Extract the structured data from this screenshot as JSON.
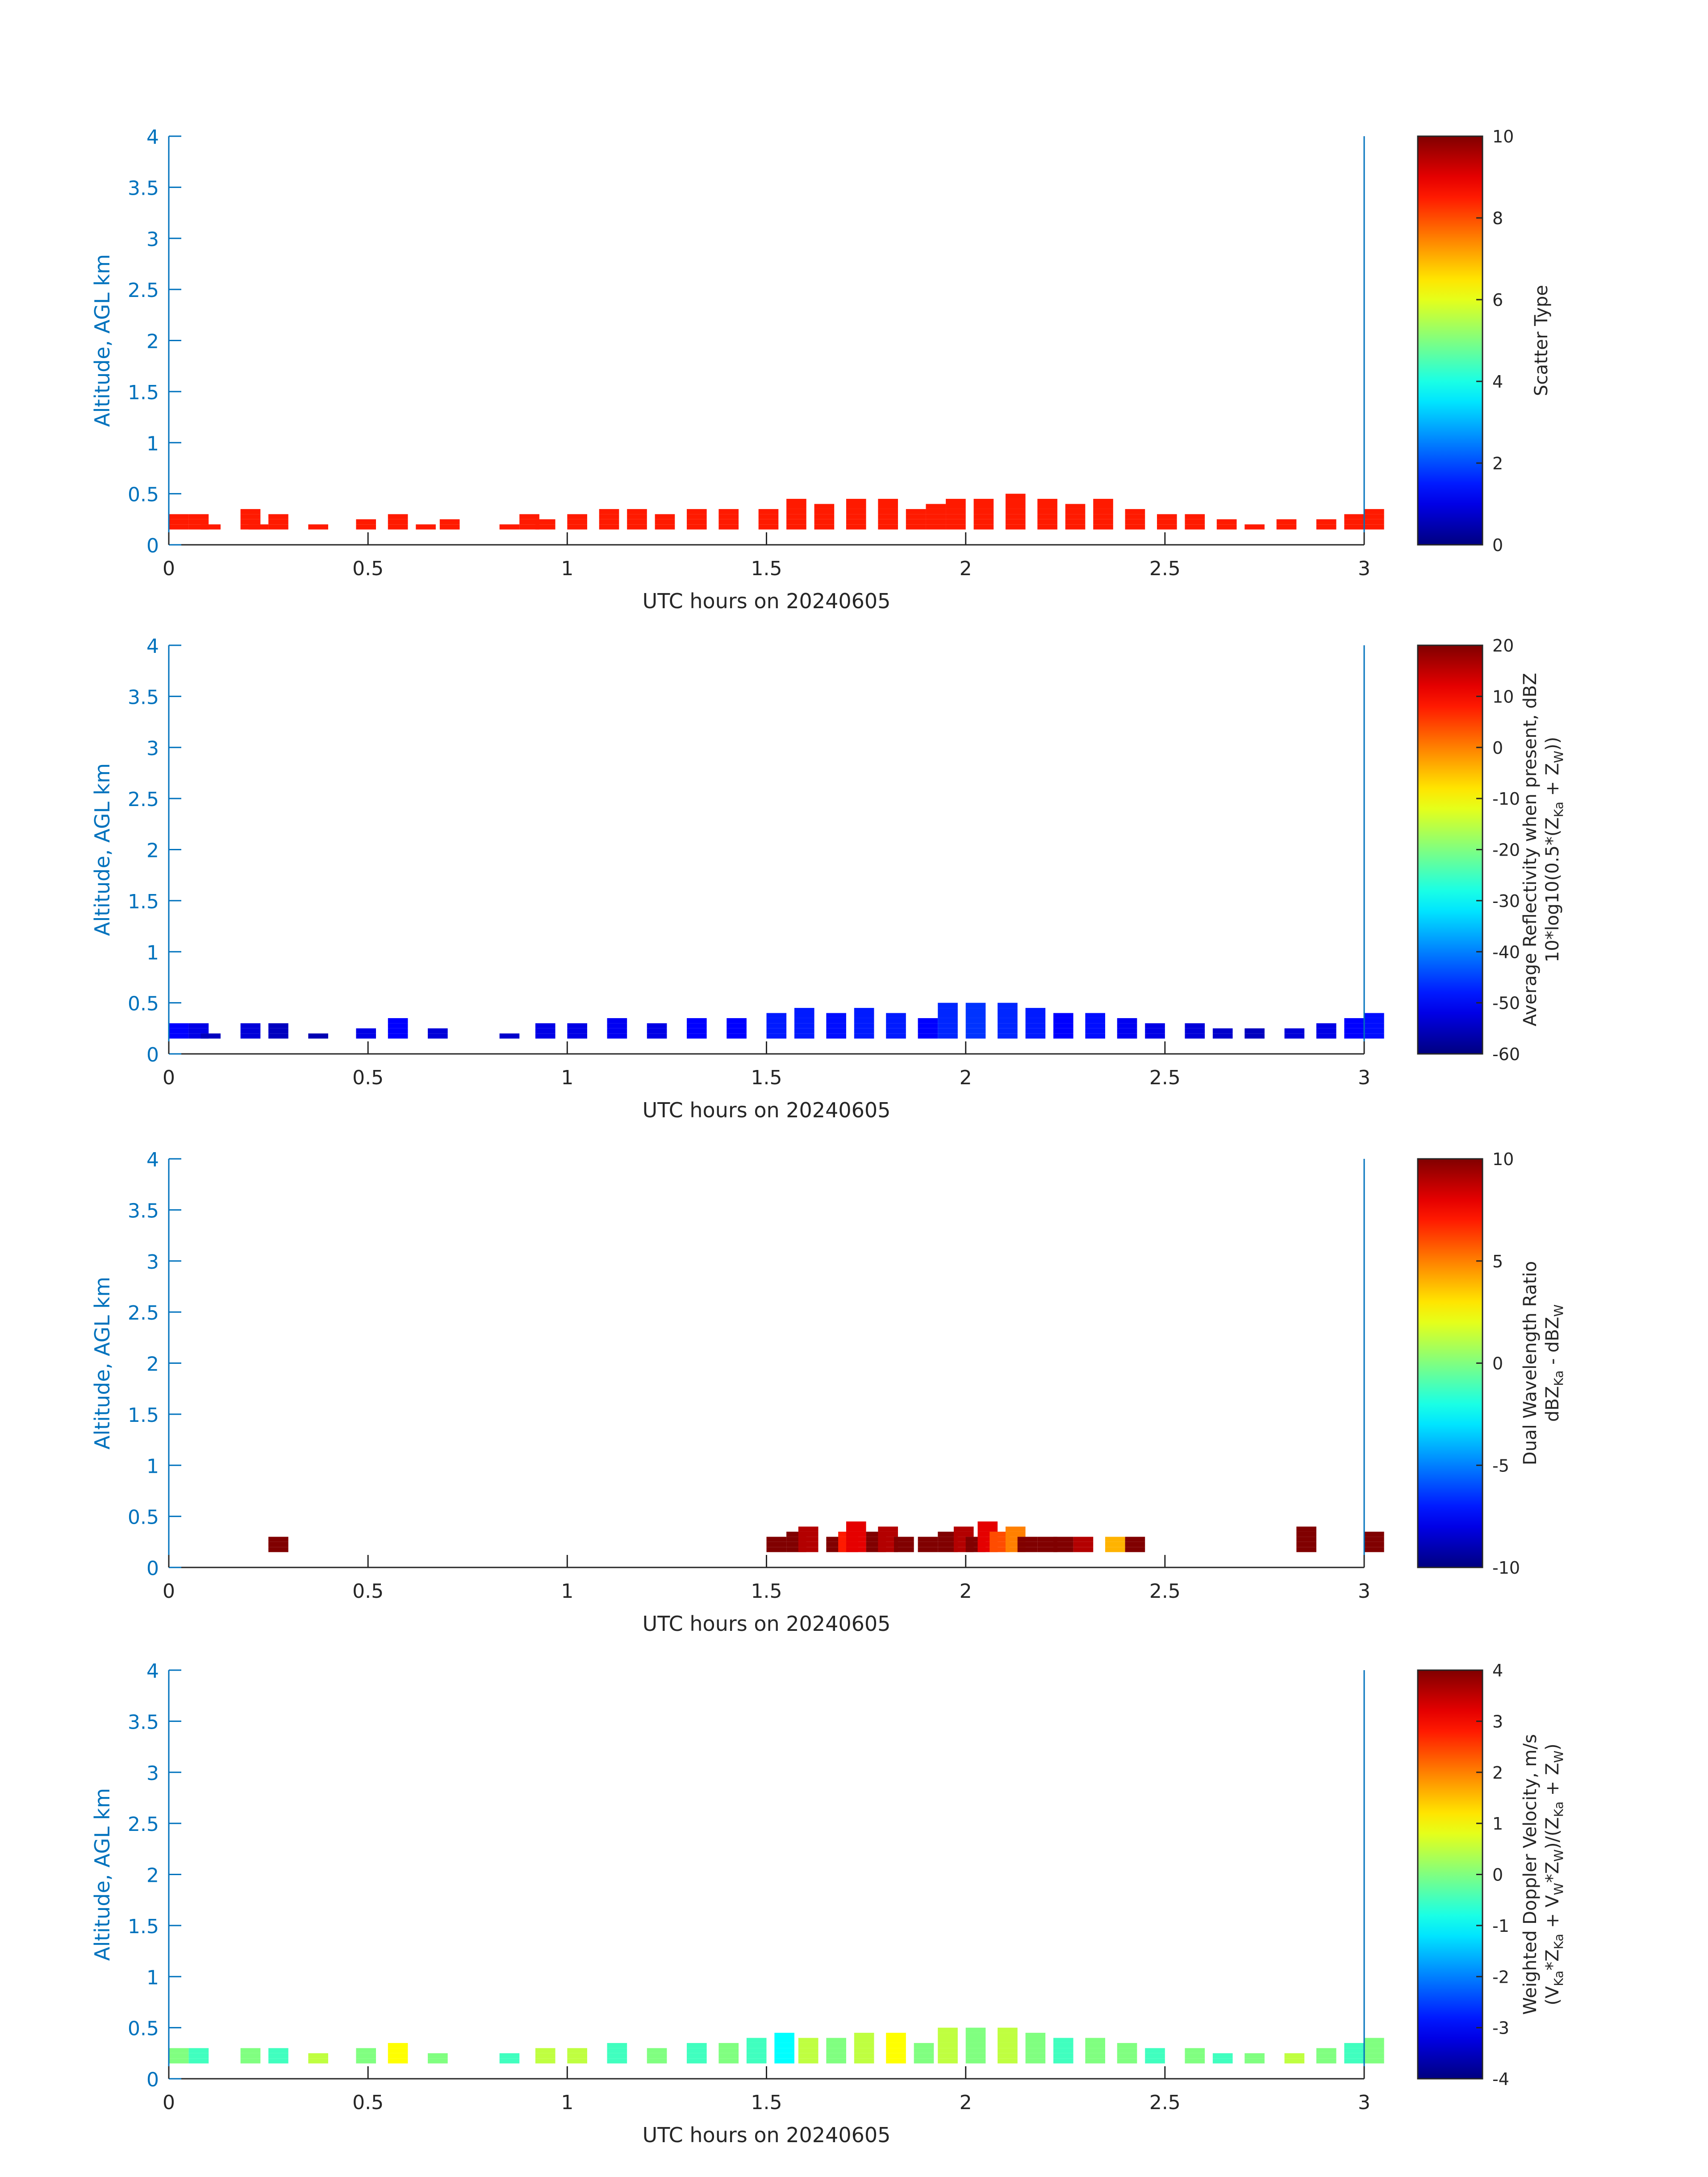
{
  "chart_data": [
    {
      "type": "heatmap",
      "xlabel": "UTC hours on 20240605",
      "ylabel": "Altitude, AGL km",
      "xlim": [
        0,
        3
      ],
      "ylim": [
        0,
        4
      ],
      "xticks": [
        "0",
        "0.5",
        "1",
        "1.5",
        "2",
        "2.5",
        "3"
      ],
      "yticks": [
        "0",
        "0.5",
        "1",
        "1.5",
        "2",
        "2.5",
        "3",
        "3.5",
        "4"
      ],
      "colorbar": {
        "label_lines": [
          "Scatter Type"
        ],
        "clim": [
          0,
          10
        ],
        "ticks": [
          "0",
          "2",
          "4",
          "6",
          "8",
          "10"
        ],
        "colormap": "jet"
      },
      "cell_height_km": 0.05,
      "bins": [
        [
          0.0,
          0.3,
          8.5
        ],
        [
          0.05,
          0.3,
          8.5
        ],
        [
          0.08,
          0.2,
          8.5
        ],
        [
          0.18,
          0.35,
          8.5
        ],
        [
          0.2,
          0.2,
          8.5
        ],
        [
          0.25,
          0.3,
          8.5
        ],
        [
          0.35,
          0.2,
          8.5
        ],
        [
          0.47,
          0.25,
          8.5
        ],
        [
          0.55,
          0.3,
          8.5
        ],
        [
          0.62,
          0.2,
          8.5
        ],
        [
          0.68,
          0.25,
          8.5
        ],
        [
          0.83,
          0.2,
          8.5
        ],
        [
          0.88,
          0.3,
          8.5
        ],
        [
          0.92,
          0.25,
          8.5
        ],
        [
          1.0,
          0.3,
          8.5
        ],
        [
          1.08,
          0.35,
          8.5
        ],
        [
          1.15,
          0.35,
          8.5
        ],
        [
          1.22,
          0.3,
          8.5
        ],
        [
          1.3,
          0.35,
          8.5
        ],
        [
          1.38,
          0.35,
          8.5
        ],
        [
          1.48,
          0.35,
          8.5
        ],
        [
          1.55,
          0.45,
          8.5
        ],
        [
          1.62,
          0.4,
          8.5
        ],
        [
          1.7,
          0.45,
          8.5
        ],
        [
          1.78,
          0.45,
          8.5
        ],
        [
          1.85,
          0.35,
          8.5
        ],
        [
          1.9,
          0.4,
          8.5
        ],
        [
          1.95,
          0.45,
          8.5
        ],
        [
          2.02,
          0.45,
          8.5
        ],
        [
          2.1,
          0.5,
          8.5
        ],
        [
          2.18,
          0.45,
          8.5
        ],
        [
          2.25,
          0.4,
          8.5
        ],
        [
          2.32,
          0.45,
          8.5
        ],
        [
          2.4,
          0.35,
          8.5
        ],
        [
          2.48,
          0.3,
          8.5
        ],
        [
          2.55,
          0.3,
          8.5
        ],
        [
          2.63,
          0.25,
          8.5
        ],
        [
          2.7,
          0.2,
          8.5
        ],
        [
          2.78,
          0.25,
          8.5
        ],
        [
          2.88,
          0.25,
          8.5
        ],
        [
          2.95,
          0.3,
          8.5
        ],
        [
          3.0,
          0.35,
          8.5
        ]
      ]
    },
    {
      "type": "heatmap",
      "xlabel": "UTC hours on 20240605",
      "ylabel": "Altitude, AGL km",
      "xlim": [
        0,
        3
      ],
      "ylim": [
        0,
        4
      ],
      "xticks": [
        "0",
        "0.5",
        "1",
        "1.5",
        "2",
        "2.5",
        "3"
      ],
      "yticks": [
        "0",
        "0.5",
        "1",
        "1.5",
        "2",
        "2.5",
        "3",
        "3.5",
        "4"
      ],
      "colorbar": {
        "label_lines": [
          "Average Reflectivity when present, dBZ",
          "10*log10(0.5*(Z_Ka + Z_W))"
        ],
        "clim": [
          -60,
          20
        ],
        "ticks": [
          "-60",
          "-50",
          "-40",
          "-30",
          "-20",
          "-10",
          "0",
          "10",
          "20"
        ],
        "colormap": "jet"
      },
      "cell_height_km": 0.05,
      "bins": [
        [
          0.0,
          0.3,
          -50
        ],
        [
          0.05,
          0.3,
          -52
        ],
        [
          0.08,
          0.2,
          -55
        ],
        [
          0.18,
          0.3,
          -53
        ],
        [
          0.25,
          0.3,
          -55
        ],
        [
          0.35,
          0.2,
          -56
        ],
        [
          0.47,
          0.25,
          -52
        ],
        [
          0.55,
          0.35,
          -50
        ],
        [
          0.65,
          0.25,
          -53
        ],
        [
          0.83,
          0.2,
          -54
        ],
        [
          0.92,
          0.3,
          -52
        ],
        [
          1.0,
          0.3,
          -52
        ],
        [
          1.1,
          0.35,
          -51
        ],
        [
          1.2,
          0.3,
          -52
        ],
        [
          1.3,
          0.35,
          -50
        ],
        [
          1.4,
          0.35,
          -50
        ],
        [
          1.5,
          0.4,
          -48
        ],
        [
          1.57,
          0.45,
          -48
        ],
        [
          1.65,
          0.4,
          -49
        ],
        [
          1.72,
          0.45,
          -48
        ],
        [
          1.8,
          0.4,
          -48
        ],
        [
          1.88,
          0.35,
          -50
        ],
        [
          1.93,
          0.5,
          -47
        ],
        [
          2.0,
          0.5,
          -46
        ],
        [
          2.08,
          0.5,
          -47
        ],
        [
          2.15,
          0.45,
          -48
        ],
        [
          2.22,
          0.4,
          -50
        ],
        [
          2.3,
          0.4,
          -49
        ],
        [
          2.38,
          0.35,
          -51
        ],
        [
          2.45,
          0.3,
          -52
        ],
        [
          2.55,
          0.3,
          -53
        ],
        [
          2.62,
          0.25,
          -54
        ],
        [
          2.7,
          0.25,
          -55
        ],
        [
          2.8,
          0.25,
          -53
        ],
        [
          2.88,
          0.3,
          -52
        ],
        [
          2.95,
          0.35,
          -50
        ],
        [
          3.0,
          0.4,
          -49
        ]
      ]
    },
    {
      "type": "heatmap",
      "xlabel": "UTC hours on 20240605",
      "ylabel": "Altitude, AGL km",
      "xlim": [
        0,
        3
      ],
      "ylim": [
        0,
        4
      ],
      "xticks": [
        "0",
        "0.5",
        "1",
        "1.5",
        "2",
        "2.5",
        "3"
      ],
      "yticks": [
        "0",
        "0.5",
        "1",
        "1.5",
        "2",
        "2.5",
        "3",
        "3.5",
        "4"
      ],
      "colorbar": {
        "label_lines": [
          "Dual Wavelength Ratio",
          "dBZ_Ka - dBZ_W"
        ],
        "clim": [
          -10,
          10
        ],
        "ticks": [
          "-10",
          "-5",
          "0",
          "5",
          "10"
        ],
        "colormap": "jet"
      },
      "cell_height_km": 0.05,
      "bins": [
        [
          0.25,
          0.3,
          10
        ],
        [
          1.5,
          0.3,
          10
        ],
        [
          1.55,
          0.35,
          10
        ],
        [
          1.58,
          0.4,
          9
        ],
        [
          1.65,
          0.3,
          10
        ],
        [
          1.68,
          0.35,
          7
        ],
        [
          1.7,
          0.45,
          8
        ],
        [
          1.75,
          0.35,
          10
        ],
        [
          1.78,
          0.4,
          9
        ],
        [
          1.82,
          0.3,
          10
        ],
        [
          1.88,
          0.3,
          10
        ],
        [
          1.93,
          0.35,
          10
        ],
        [
          1.97,
          0.4,
          9
        ],
        [
          2.0,
          0.3,
          10
        ],
        [
          2.03,
          0.45,
          8
        ],
        [
          2.06,
          0.35,
          6
        ],
        [
          2.1,
          0.4,
          5
        ],
        [
          2.13,
          0.3,
          10
        ],
        [
          2.18,
          0.3,
          10
        ],
        [
          2.22,
          0.3,
          10
        ],
        [
          2.27,
          0.3,
          9
        ],
        [
          2.35,
          0.3,
          4
        ],
        [
          2.4,
          0.3,
          10
        ],
        [
          2.83,
          0.4,
          10
        ],
        [
          3.0,
          0.35,
          10
        ]
      ]
    },
    {
      "type": "heatmap",
      "xlabel": "UTC hours on 20240605",
      "ylabel": "Altitude, AGL km",
      "xlim": [
        0,
        3
      ],
      "ylim": [
        0,
        4
      ],
      "xticks": [
        "0",
        "0.5",
        "1",
        "1.5",
        "2",
        "2.5",
        "3"
      ],
      "yticks": [
        "0",
        "0.5",
        "1",
        "1.5",
        "2",
        "2.5",
        "3",
        "3.5",
        "4"
      ],
      "colorbar": {
        "label_lines": [
          "Weighted Doppler Velocity, m/s",
          "(V_Ka*Z_Ka + V_W*Z_W)/(Z_Ka + Z_W)"
        ],
        "clim": [
          -4,
          4
        ],
        "ticks": [
          "-4",
          "-3",
          "-2",
          "-1",
          "0",
          "1",
          "2",
          "3",
          "4"
        ],
        "colormap": "jet"
      },
      "cell_height_km": 0.05,
      "bins": [
        [
          0.0,
          0.3,
          0.0
        ],
        [
          0.05,
          0.3,
          -0.5
        ],
        [
          0.18,
          0.3,
          0.0
        ],
        [
          0.25,
          0.3,
          -0.5
        ],
        [
          0.35,
          0.25,
          0.5
        ],
        [
          0.47,
          0.3,
          0.0
        ],
        [
          0.55,
          0.35,
          1.0
        ],
        [
          0.65,
          0.25,
          0.0
        ],
        [
          0.83,
          0.25,
          -0.5
        ],
        [
          0.92,
          0.3,
          0.5
        ],
        [
          1.0,
          0.3,
          0.5
        ],
        [
          1.1,
          0.35,
          -0.5
        ],
        [
          1.2,
          0.3,
          0.0
        ],
        [
          1.3,
          0.35,
          -0.5
        ],
        [
          1.38,
          0.35,
          0.0
        ],
        [
          1.45,
          0.4,
          -0.5
        ],
        [
          1.52,
          0.45,
          -1.0
        ],
        [
          1.58,
          0.4,
          0.5
        ],
        [
          1.65,
          0.4,
          0.0
        ],
        [
          1.72,
          0.45,
          0.5
        ],
        [
          1.8,
          0.45,
          1.0
        ],
        [
          1.87,
          0.35,
          0.0
        ],
        [
          1.93,
          0.5,
          0.5
        ],
        [
          2.0,
          0.5,
          0.0
        ],
        [
          2.08,
          0.5,
          0.5
        ],
        [
          2.15,
          0.45,
          0.0
        ],
        [
          2.22,
          0.4,
          -0.5
        ],
        [
          2.3,
          0.4,
          0.0
        ],
        [
          2.38,
          0.35,
          0.0
        ],
        [
          2.45,
          0.3,
          -0.5
        ],
        [
          2.55,
          0.3,
          0.0
        ],
        [
          2.62,
          0.25,
          -0.5
        ],
        [
          2.7,
          0.25,
          0.0
        ],
        [
          2.8,
          0.25,
          0.5
        ],
        [
          2.88,
          0.3,
          0.0
        ],
        [
          2.95,
          0.35,
          -0.5
        ],
        [
          3.0,
          0.4,
          0.0
        ]
      ]
    }
  ]
}
